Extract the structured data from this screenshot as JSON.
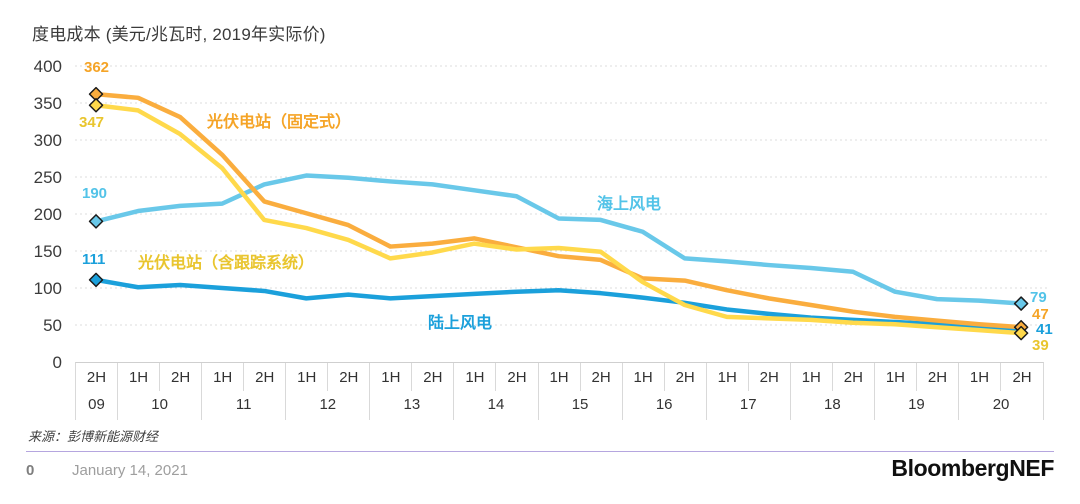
{
  "title": "度电成本 (美元/兆瓦时, 2019年实际价)",
  "source": "来源：彭博新能源财经",
  "footer": {
    "page_number": "0",
    "date": "January 14, 2021",
    "brand": "BloombergNEF"
  },
  "colors": {
    "pv_fixed": "#faad3e",
    "pv_tracking": "#ffd94b",
    "offshore_wind": "#69c8e9",
    "onshore_wind": "#1ba0db",
    "divider": "#b5a6df",
    "gridline": "#dcdcdc"
  },
  "chart_data": {
    "type": "line",
    "title": "度电成本 (美元/兆瓦时, 2019年实际价)",
    "ylabel": "美元/兆瓦时 (2019年实际价)",
    "ylim": [
      0,
      400
    ],
    "y_ticks": [
      400,
      350,
      300,
      250,
      200,
      150,
      100,
      50,
      0
    ],
    "grid": "horizontal-dashed",
    "legend_position": "inline-labels",
    "categories": [
      "2H 09",
      "1H 10",
      "2H 10",
      "1H 11",
      "2H 11",
      "1H 12",
      "2H 12",
      "1H 13",
      "2H 13",
      "1H 14",
      "2H 14",
      "1H 15",
      "2H 15",
      "1H 16",
      "2H 16",
      "1H 17",
      "2H 17",
      "1H 18",
      "2H 18",
      "1H 19",
      "2H 19",
      "1H 20",
      "2H 20"
    ],
    "x_halves": [
      "2H",
      "1H",
      "2H",
      "1H",
      "2H",
      "1H",
      "2H",
      "1H",
      "2H",
      "1H",
      "2H",
      "1H",
      "2H",
      "1H",
      "2H",
      "1H",
      "2H",
      "1H",
      "2H",
      "1H",
      "2H",
      "1H",
      "2H"
    ],
    "x_years": [
      {
        "label": "09",
        "span": 1
      },
      {
        "label": "10",
        "span": 2
      },
      {
        "label": "11",
        "span": 2
      },
      {
        "label": "12",
        "span": 2
      },
      {
        "label": "13",
        "span": 2
      },
      {
        "label": "14",
        "span": 2
      },
      {
        "label": "15",
        "span": 2
      },
      {
        "label": "16",
        "span": 2
      },
      {
        "label": "17",
        "span": 2
      },
      {
        "label": "18",
        "span": 2
      },
      {
        "label": "19",
        "span": 2
      },
      {
        "label": "20",
        "span": 2
      }
    ],
    "series": [
      {
        "name": "海上风电",
        "color": "#69c8e9",
        "start_label": 190,
        "end_label": 79,
        "markers": {
          "start": true,
          "end": true
        },
        "values": [
          190,
          204,
          211,
          214,
          240,
          252,
          249,
          244,
          240,
          232,
          224,
          194,
          192,
          176,
          140,
          136,
          131,
          127,
          122,
          95,
          85,
          83,
          79
        ]
      },
      {
        "name": "陆上风电",
        "color": "#1ba0db",
        "start_label": 111,
        "end_label": 41,
        "markers": {
          "start": true,
          "end": false
        },
        "values": [
          111,
          101,
          104,
          100,
          96,
          86,
          91,
          86,
          89,
          92,
          95,
          97,
          93,
          87,
          80,
          71,
          65,
          60,
          57,
          54,
          51,
          48,
          41
        ]
      },
      {
        "name": "光伏电站（固定式）",
        "color": "#faad3e",
        "start_label": 362,
        "end_label": 47,
        "markers": {
          "start": true,
          "end": true
        },
        "values": [
          362,
          357,
          331,
          280,
          217,
          201,
          185,
          156,
          160,
          167,
          155,
          143,
          138,
          113,
          110,
          97,
          86,
          77,
          68,
          61,
          56,
          51,
          47
        ]
      },
      {
        "name": "光伏电站（含跟踪系统）",
        "color": "#ffd94b",
        "start_label": 347,
        "end_label": 39,
        "markers": {
          "start": true,
          "end": true
        },
        "values": [
          347,
          340,
          308,
          262,
          192,
          181,
          165,
          140,
          148,
          160,
          152,
          154,
          149,
          108,
          77,
          61,
          59,
          57,
          53,
          51,
          47,
          43,
          39
        ]
      }
    ]
  }
}
